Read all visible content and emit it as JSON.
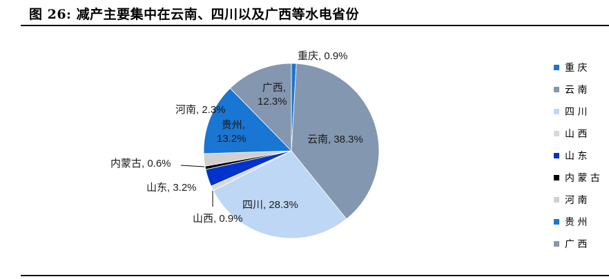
{
  "header": {
    "title": "图 26:  减产主要集中在云南、四川以及广西等水电省份"
  },
  "chart_data": {
    "type": "pie",
    "title": "减产主要集中在云南、四川以及广西等水电省份",
    "start_angle": "12 o'clock, clockwise",
    "slices": [
      {
        "name": "重庆",
        "value": 0.9,
        "label": "重庆, 0.9%",
        "color": "#1976d2"
      },
      {
        "name": "云南",
        "value": 38.3,
        "label": "云南, 38.3%",
        "color": "#8497b0"
      },
      {
        "name": "四川",
        "value": 28.3,
        "label": "四川, 28.3%",
        "color": "#bdd7f5"
      },
      {
        "name": "山西",
        "value": 0.9,
        "label": "山西, 0.9%",
        "color": "#d9d9d9"
      },
      {
        "name": "山东",
        "value": 3.2,
        "label": "山东, 3.2%",
        "color": "#0033cc"
      },
      {
        "name": "内蒙古",
        "value": 0.6,
        "label": "内蒙古, 0.6%",
        "color": "#000000"
      },
      {
        "name": "河南",
        "value": 2.3,
        "label": "河南, 2.3%",
        "color": "#d0d0d0"
      },
      {
        "name": "贵州",
        "value": 13.2,
        "label": "贵州, 13.2%",
        "color": "#1976d2"
      },
      {
        "name": "广西",
        "value": 12.3,
        "label": "广西, 12.3%",
        "color": "#8497b0"
      }
    ],
    "legend_position": "right",
    "legend": [
      "重庆",
      "云南",
      "四川",
      "山西",
      "山东",
      "内蒙古",
      "河南",
      "贵州",
      "广西"
    ]
  },
  "labels": {
    "chongqing": "重庆, 0.9%",
    "yunnan": "云南, 38.3%",
    "sichuan": "四川, 28.3%",
    "shanxi": "山西, 0.9%",
    "shandong": "山东, 3.2%",
    "neimenggu": "内蒙古, 0.6%",
    "henan": "河南, 2.3%",
    "guizhou_1": "贵州,",
    "guizhou_2": "13.2%",
    "guangxi_1": "广西,",
    "guangxi_2": "12.3%"
  }
}
